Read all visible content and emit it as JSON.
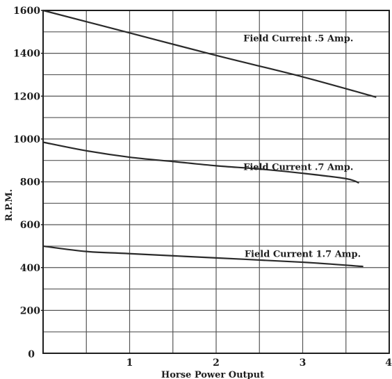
{
  "chart_data": {
    "type": "line",
    "xlabel": "Horse Power Output",
    "ylabel": "R.P.M.",
    "xlim": [
      0,
      4
    ],
    "ylim": [
      0,
      1600
    ],
    "grid": true,
    "x_ticks": [
      "1",
      "2",
      "3",
      "4"
    ],
    "x_origin_label": "0",
    "y_ticks": [
      "200",
      "400",
      "600",
      "800",
      "1000",
      "1200",
      "1400",
      "1600"
    ],
    "series": [
      {
        "name": "Field Current .5 Amp.",
        "x": [
          0,
          1,
          2,
          3,
          3.85
        ],
        "y": [
          1600,
          1495,
          1390,
          1290,
          1195
        ]
      },
      {
        "name": "Field Current .7 Amp.",
        "x": [
          0,
          0.5,
          1,
          1.5,
          2,
          2.5,
          3,
          3.5,
          3.65
        ],
        "y": [
          985,
          945,
          915,
          895,
          875,
          860,
          840,
          815,
          795
        ]
      },
      {
        "name": "Field Current 1.7 Amp.",
        "x": [
          0,
          0.5,
          1,
          2,
          3,
          3.7
        ],
        "y": [
          500,
          475,
          465,
          445,
          425,
          405
        ]
      }
    ],
    "line_color": "#2a2a2a",
    "grid_color": "#555555"
  }
}
